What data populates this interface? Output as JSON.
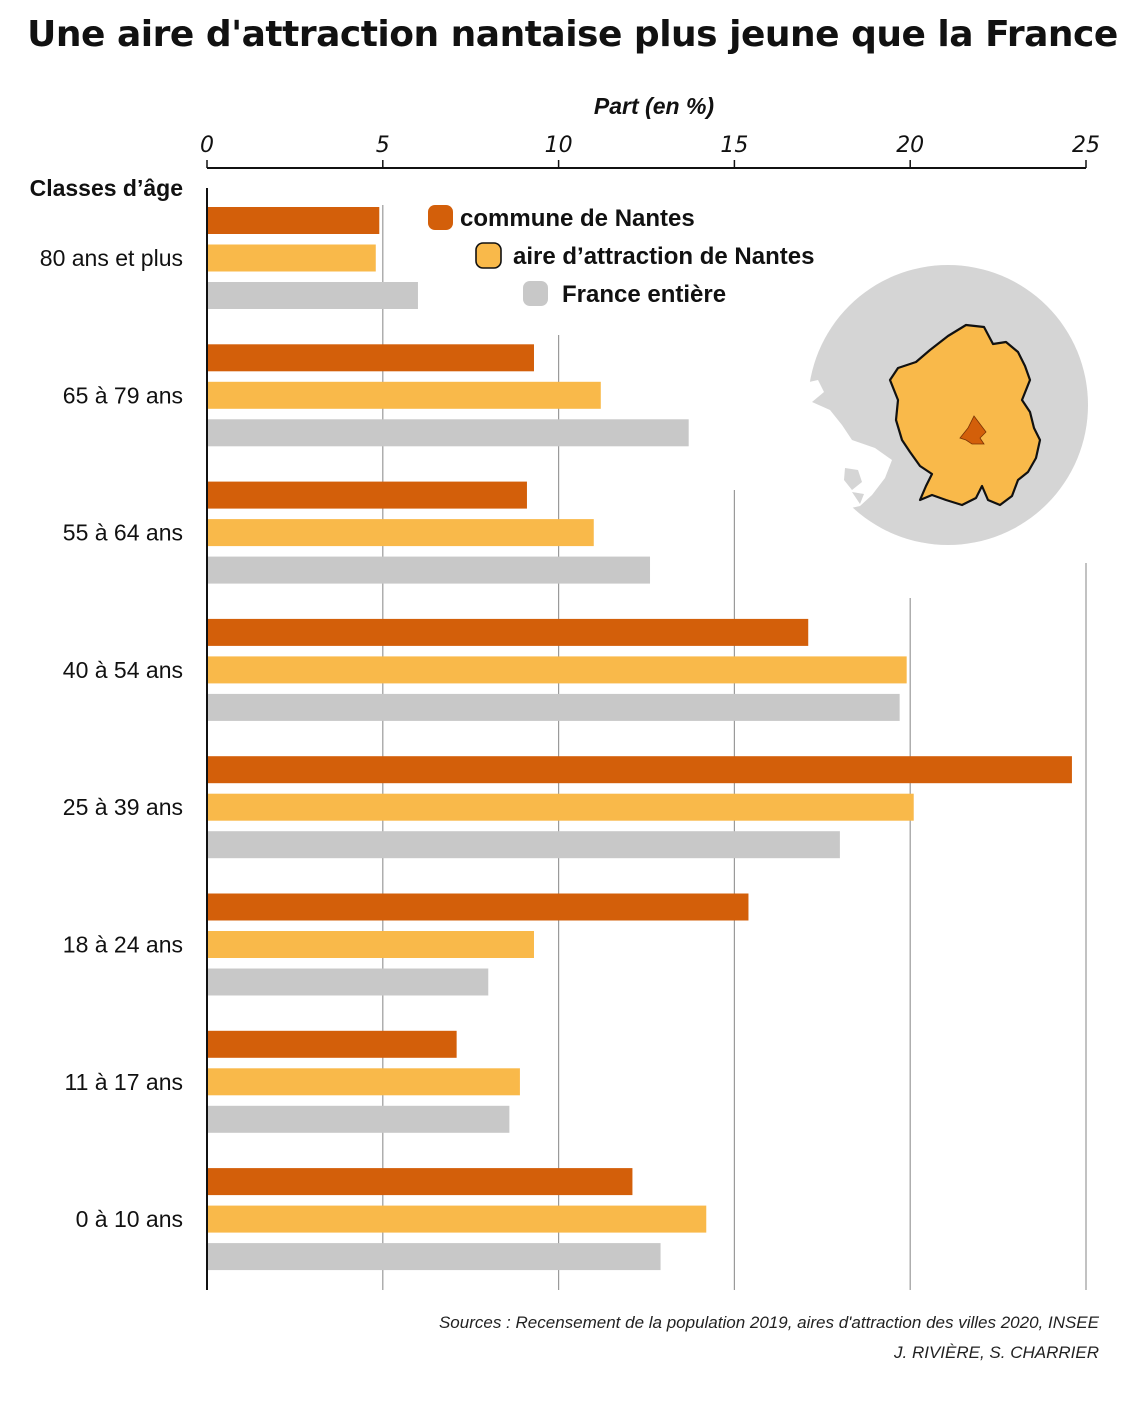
{
  "title": "Une aire d'attraction nantaise plus jeune que la France",
  "sources": "Sources : Recensement de la population 2019, aires d'attraction des villes 2020, INSEE",
  "authors": "J. RIVIÈRE, S. CHARRIER",
  "colors": {
    "nantes": "#d35f0a",
    "aire": "#f9b94a",
    "france": "#c8c8c8",
    "grid": "#9a9a9a",
    "axis": "#111111"
  },
  "chart_data": {
    "type": "bar",
    "orientation": "horizontal",
    "title": "Une aire d'attraction nantaise plus jeune que la France",
    "xlabel": "Part (en %)",
    "ylabel": "Classes d’âge",
    "xlim": [
      0,
      25
    ],
    "xticks": [
      0,
      5,
      10,
      15,
      20,
      25
    ],
    "grid": true,
    "legend_position": "top-right",
    "categories": [
      "80 ans et plus",
      "65 à 79 ans",
      "55 à 64 ans",
      "40 à 54 ans",
      "25 à 39 ans",
      "18 à 24 ans",
      "11 à 17 ans",
      "0 à 10 ans"
    ],
    "series": [
      {
        "name": "commune de Nantes",
        "color": "#d35f0a",
        "values": [
          4.9,
          9.3,
          9.1,
          17.1,
          24.6,
          15.4,
          7.1,
          12.1
        ]
      },
      {
        "name": "aire d’attraction de Nantes",
        "color": "#f9b94a",
        "values": [
          4.8,
          11.2,
          11.0,
          19.9,
          20.1,
          9.3,
          8.9,
          14.2
        ]
      },
      {
        "name": "France entière",
        "color": "#c8c8c8",
        "values": [
          6.0,
          13.7,
          12.6,
          19.7,
          18.0,
          8.0,
          8.6,
          12.9
        ]
      }
    ]
  }
}
